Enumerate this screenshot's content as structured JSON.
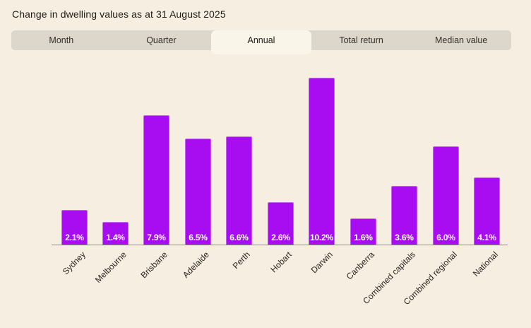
{
  "title": "Change in dwelling values as at 31 August 2025",
  "tabs": [
    {
      "label": "Month",
      "active": false
    },
    {
      "label": "Quarter",
      "active": false
    },
    {
      "label": "Annual",
      "active": true
    },
    {
      "label": "Total return",
      "active": false
    },
    {
      "label": "Median value",
      "active": false
    }
  ],
  "chart_data": {
    "type": "bar",
    "title": "Change in dwelling values as at 31 August 2025",
    "categories": [
      "Sydney",
      "Melbourne",
      "Brisbane",
      "Adelaide",
      "Perth",
      "Hobart",
      "Darwin",
      "Canberra",
      "Combined capitals",
      "Combined regional",
      "National"
    ],
    "values": [
      2.1,
      1.4,
      7.9,
      6.5,
      6.6,
      2.6,
      10.2,
      1.6,
      3.6,
      6.0,
      4.1
    ],
    "labels": [
      "2.1%",
      "1.4%",
      "7.9%",
      "6.5%",
      "6.6%",
      "2.6%",
      "10.2%",
      "1.6%",
      "3.6%",
      "6.0%",
      "4.1%"
    ],
    "unit": "%",
    "ylim": [
      0,
      10.2
    ],
    "value_label_position": "inside-bottom",
    "grid": false,
    "legend": false,
    "xlabel": "",
    "ylabel": ""
  },
  "colors": {
    "background": "#f6eee0",
    "tab_bar": "#dcd7ca",
    "tab_active": "#faf5e9",
    "bar": "#a80df2",
    "axis": "#8f8b83",
    "text": "#1e1c18"
  }
}
